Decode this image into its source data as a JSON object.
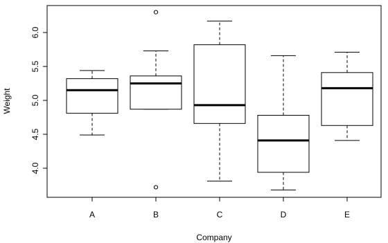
{
  "chart_data": {
    "type": "boxplot",
    "title": "",
    "xlabel": "Company",
    "ylabel": "Weight",
    "ylim": [
      3.5,
      6.4
    ],
    "yticks": [
      "4.0",
      "4.5",
      "5.0",
      "5.5",
      "6.0"
    ],
    "categories": [
      "A",
      "B",
      "C",
      "D",
      "E"
    ],
    "boxes": [
      {
        "category": "A",
        "whisker_low": 4.49,
        "q1": 4.81,
        "median": 5.15,
        "q3": 5.32,
        "whisker_high": 5.44,
        "outliers": []
      },
      {
        "category": "B",
        "whisker_low": 4.87,
        "q1": 4.87,
        "median": 5.25,
        "q3": 5.36,
        "whisker_high": 5.73,
        "outliers": [
          6.3,
          3.72
        ]
      },
      {
        "category": "C",
        "whisker_low": 3.81,
        "q1": 4.66,
        "median": 4.93,
        "q3": 5.82,
        "whisker_high": 6.17,
        "outliers": []
      },
      {
        "category": "D",
        "whisker_low": 3.68,
        "q1": 3.94,
        "median": 4.41,
        "q3": 4.78,
        "whisker_high": 5.66,
        "outliers": []
      },
      {
        "category": "E",
        "whisker_low": 4.41,
        "q1": 4.63,
        "median": 5.18,
        "q3": 5.41,
        "whisker_high": 5.71,
        "outliers": []
      }
    ],
    "grid": false,
    "legend": "none"
  }
}
